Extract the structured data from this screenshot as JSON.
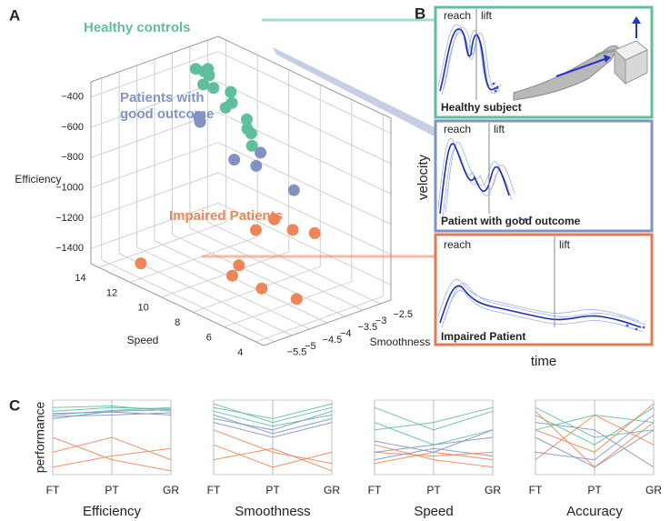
{
  "panel_labels": [
    "A",
    "B",
    "C"
  ],
  "chart_data": [
    {
      "type": "scatter3d",
      "xlabel": "Smoothness",
      "ylabel": "Speed",
      "zlabel": "Efficiency",
      "xlim": [
        -5.8,
        -2.2
      ],
      "ylim": [
        3.5,
        14.5
      ],
      "zlim": [
        -1500,
        -300
      ],
      "xticks": [
        {
          "value": -5.5,
          "label": "−5.5"
        },
        {
          "value": -5,
          "label": "−5"
        },
        {
          "value": -4.5,
          "label": "−4.5"
        },
        {
          "value": -4,
          "label": "−4"
        },
        {
          "value": -3.5,
          "label": "−3.5"
        },
        {
          "value": -3,
          "label": "−3"
        },
        {
          "value": -2.5,
          "label": "−2.5"
        }
      ],
      "yticks": [
        4,
        6,
        8,
        10,
        12,
        14
      ],
      "zticks": [
        {
          "value": -1400,
          "label": "−1400"
        },
        {
          "value": -1200,
          "label": "−1200"
        },
        {
          "value": -1000,
          "label": "−1000"
        },
        {
          "value": -800,
          "label": "−800"
        },
        {
          "value": -600,
          "label": "−600"
        },
        {
          "value": -400,
          "label": "−400"
        }
      ],
      "series": [
        {
          "name": "Healthy controls",
          "color": "#5fbf9b",
          "x": [
            -2.9,
            -2.8,
            -3.0,
            -2.7,
            -2.6,
            -3.2,
            -2.5,
            -2.6,
            -2.8,
            -3.0,
            -2.4,
            -2.7,
            -3.1
          ],
          "y": [
            13.5,
            13.8,
            13.0,
            12.5,
            12.8,
            13.2,
            12.0,
            11.5,
            11.0,
            13.6,
            12.2,
            12.9,
            13.9
          ],
          "z": [
            -450,
            -430,
            -500,
            -600,
            -550,
            -470,
            -700,
            -760,
            -800,
            -420,
            -780,
            -650,
            -410
          ]
        },
        {
          "name": "Patients with good outcome",
          "color": "#8193c4",
          "x": [
            -3.6,
            -3.5,
            -3.0,
            -2.5,
            -3.3,
            -2.9
          ],
          "y": [
            12.5,
            12.8,
            10.0,
            9.0,
            11.0,
            10.5
          ],
          "z": [
            -650,
            -640,
            -780,
            -1020,
            -850,
            -900
          ]
        },
        {
          "name": "Impaired Patients",
          "color": "#ef8456",
          "x": [
            -3.5,
            -3.2,
            -2.8,
            -3.8,
            -4.5,
            -4.6,
            -4.3,
            -5.5,
            -4.2
          ],
          "y": [
            8.0,
            7.5,
            7.0,
            8.5,
            8.0,
            8.2,
            7.0,
            12.0,
            5.0
          ],
          "z": [
            -1080,
            -1150,
            -1180,
            -1150,
            -1300,
            -1370,
            -1420,
            -1400,
            -1400
          ]
        }
      ]
    },
    {
      "type": "parallel",
      "ylabel": "performance",
      "axes": [
        "FT",
        "PT",
        "GR"
      ],
      "ylim": [
        0,
        1
      ],
      "panels": [
        {
          "title": "Efficiency",
          "groups": [
            {
              "color": "#5fbf9b",
              "lines": [
                [
                  0.85,
                  0.9,
                  0.88
                ],
                [
                  0.8,
                  0.86,
                  0.9
                ],
                [
                  0.9,
                  0.92,
                  0.85
                ]
              ]
            },
            {
              "color": "#8193c4",
              "lines": [
                [
                  0.78,
                  0.8,
                  0.83
                ],
                [
                  0.82,
                  0.84,
                  0.8
                ],
                [
                  0.75,
                  0.85,
                  0.87
                ]
              ]
            },
            {
              "color": "#ef8456",
              "lines": [
                [
                  0.3,
                  0.5,
                  0.2
                ],
                [
                  0.1,
                  0.25,
                  0.35
                ],
                [
                  0.5,
                  0.2,
                  0.05
                ]
              ]
            }
          ]
        },
        {
          "title": "Smoothness",
          "groups": [
            {
              "color": "#5fbf9b",
              "lines": [
                [
                  0.95,
                  0.7,
                  0.9
                ],
                [
                  0.85,
                  0.65,
                  0.8
                ],
                [
                  0.9,
                  0.75,
                  0.95
                ]
              ]
            },
            {
              "color": "#8193c4",
              "lines": [
                [
                  0.8,
                  0.55,
                  0.75
                ],
                [
                  0.75,
                  0.6,
                  0.85
                ],
                [
                  0.7,
                  0.5,
                  0.7
                ]
              ]
            },
            {
              "color": "#ef8456",
              "lines": [
                [
                  0.4,
                  0.1,
                  0.3
                ],
                [
                  0.6,
                  0.3,
                  0.15
                ],
                [
                  0.2,
                  0.35,
                  0.05
                ]
              ]
            }
          ]
        },
        {
          "title": "Speed",
          "groups": [
            {
              "color": "#5fbf9b",
              "lines": [
                [
                  0.9,
                  0.6,
                  0.85
                ],
                [
                  0.6,
                  0.7,
                  0.9
                ],
                [
                  0.7,
                  0.4,
                  0.6
                ]
              ]
            },
            {
              "color": "#8193c4",
              "lines": [
                [
                  0.3,
                  0.4,
                  0.5
                ],
                [
                  0.2,
                  0.35,
                  0.25
                ],
                [
                  0.45,
                  0.3,
                  0.6
                ]
              ]
            },
            {
              "color": "#ef8456",
              "lines": [
                [
                  0.3,
                  0.25,
                  0.3
                ],
                [
                  0.15,
                  0.3,
                  0.2
                ],
                [
                  0.4,
                  0.2,
                  0.1
                ]
              ]
            }
          ]
        },
        {
          "title": "Accuracy",
          "groups": [
            {
              "color": "#5fbf9b",
              "lines": [
                [
                  0.8,
                  0.4,
                  0.9
                ],
                [
                  0.6,
                  0.8,
                  0.7
                ],
                [
                  0.9,
                  0.5,
                  0.6
                ]
              ]
            },
            {
              "color": "#8193c4",
              "lines": [
                [
                  0.3,
                  0.2,
                  0.8
                ],
                [
                  0.5,
                  0.1,
                  0.6
                ],
                [
                  0.7,
                  0.6,
                  0.1
                ]
              ]
            },
            {
              "color": "#ef8456",
              "lines": [
                [
                  0.85,
                  0.1,
                  0.7
                ],
                [
                  0.2,
                  0.8,
                  0.4
                ],
                [
                  0.6,
                  0.3,
                  0.95
                ]
              ]
            }
          ]
        }
      ]
    }
  ],
  "velocity_panels": {
    "ylabel": "velocity",
    "xlabel": "time",
    "panels": [
      {
        "title": "Healthy subject",
        "reach": "reach",
        "lift": "lift"
      },
      {
        "title": "Patient with good outcome",
        "reach": "reach",
        "lift": "lift"
      },
      {
        "title": "Impaired Patient",
        "reach": "reach",
        "lift": "lift"
      }
    ]
  }
}
